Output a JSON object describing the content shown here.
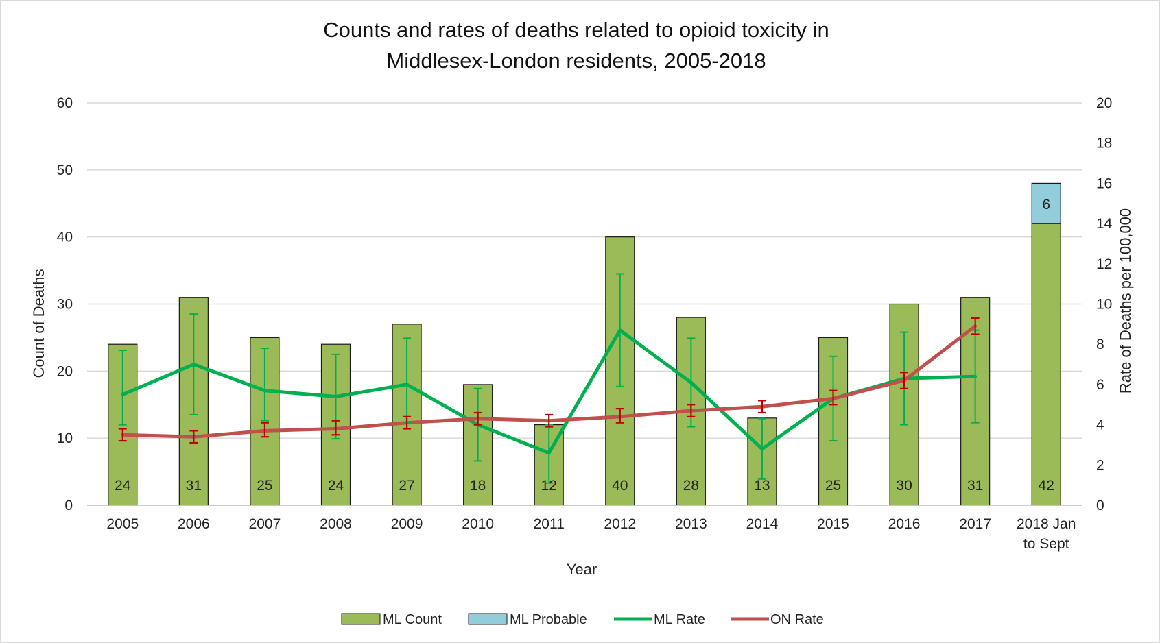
{
  "chart_data": {
    "type": "bar",
    "title_lines": [
      "Counts and rates of deaths related to opioid toxicity in",
      "Middlesex-London residents, 2005-2018"
    ],
    "xlabel": "Year",
    "ylabel": "Count of Deaths",
    "y2label": "Rate of Deaths per 100,000",
    "ylim": [
      0,
      60
    ],
    "y2lim": [
      0,
      20
    ],
    "yticks": [
      "0",
      "10",
      "20",
      "30",
      "40",
      "50",
      "60"
    ],
    "y2ticks": [
      "0",
      "2",
      "4",
      "6",
      "8",
      "10",
      "12",
      "14",
      "16",
      "18",
      "20"
    ],
    "grid": "horizontal",
    "legend_position": "bottom",
    "categories": [
      [
        "2005"
      ],
      [
        "2006"
      ],
      [
        "2007"
      ],
      [
        "2008"
      ],
      [
        "2009"
      ],
      [
        "2010"
      ],
      [
        "2011"
      ],
      [
        "2012"
      ],
      [
        "2013"
      ],
      [
        "2014"
      ],
      [
        "2015"
      ],
      [
        "2016"
      ],
      [
        "2017"
      ],
      [
        "2018 Jan",
        "to Sept"
      ]
    ],
    "series": [
      {
        "name": "ML Count",
        "type": "bar",
        "axis": "left",
        "color": "#9bbb59",
        "values": [
          24,
          31,
          25,
          24,
          27,
          18,
          12,
          40,
          28,
          13,
          25,
          30,
          31,
          42
        ],
        "labels": [
          "24",
          "31",
          "25",
          "24",
          "27",
          "18",
          "12",
          "40",
          "28",
          "13",
          "25",
          "30",
          "31",
          "42"
        ]
      },
      {
        "name": "ML Probable",
        "type": "bar-stacked",
        "axis": "left",
        "color": "#92cddc",
        "values": [
          null,
          null,
          null,
          null,
          null,
          null,
          null,
          null,
          null,
          null,
          null,
          null,
          null,
          6
        ],
        "labels": [
          "",
          "",
          "",
          "",
          "",
          "",
          "",
          "",
          "",
          "",
          "",
          "",
          "",
          "6"
        ]
      },
      {
        "name": "ML Rate",
        "type": "line",
        "axis": "right",
        "color": "#00b050",
        "values": [
          5.5,
          7.0,
          5.7,
          5.4,
          6.0,
          4.0,
          2.6,
          8.7,
          6.1,
          2.8,
          5.3,
          6.3,
          6.4,
          null
        ],
        "error_low": [
          4.0,
          4.5,
          4.2,
          3.3,
          4.1,
          2.2,
          1.1,
          5.9,
          3.9,
          1.3,
          3.2,
          4.0,
          4.1,
          null
        ],
        "error_high": [
          7.7,
          9.5,
          7.8,
          7.5,
          8.3,
          5.8,
          4.0,
          11.5,
          8.3,
          4.3,
          7.4,
          8.6,
          8.7,
          null
        ]
      },
      {
        "name": "ON Rate",
        "type": "line",
        "axis": "right",
        "color": "#c0504d",
        "values": [
          3.5,
          3.4,
          3.7,
          3.8,
          4.1,
          4.3,
          4.2,
          4.4,
          4.7,
          4.9,
          5.3,
          6.2,
          8.9,
          null
        ],
        "error_low": [
          3.2,
          3.1,
          3.4,
          3.5,
          3.8,
          4.0,
          3.9,
          4.1,
          4.4,
          4.6,
          5.0,
          5.8,
          8.5,
          null
        ],
        "error_high": [
          3.8,
          3.7,
          4.1,
          4.2,
          4.4,
          4.6,
          4.5,
          4.8,
          5.0,
          5.2,
          5.7,
          6.6,
          9.3,
          null
        ]
      }
    ]
  }
}
